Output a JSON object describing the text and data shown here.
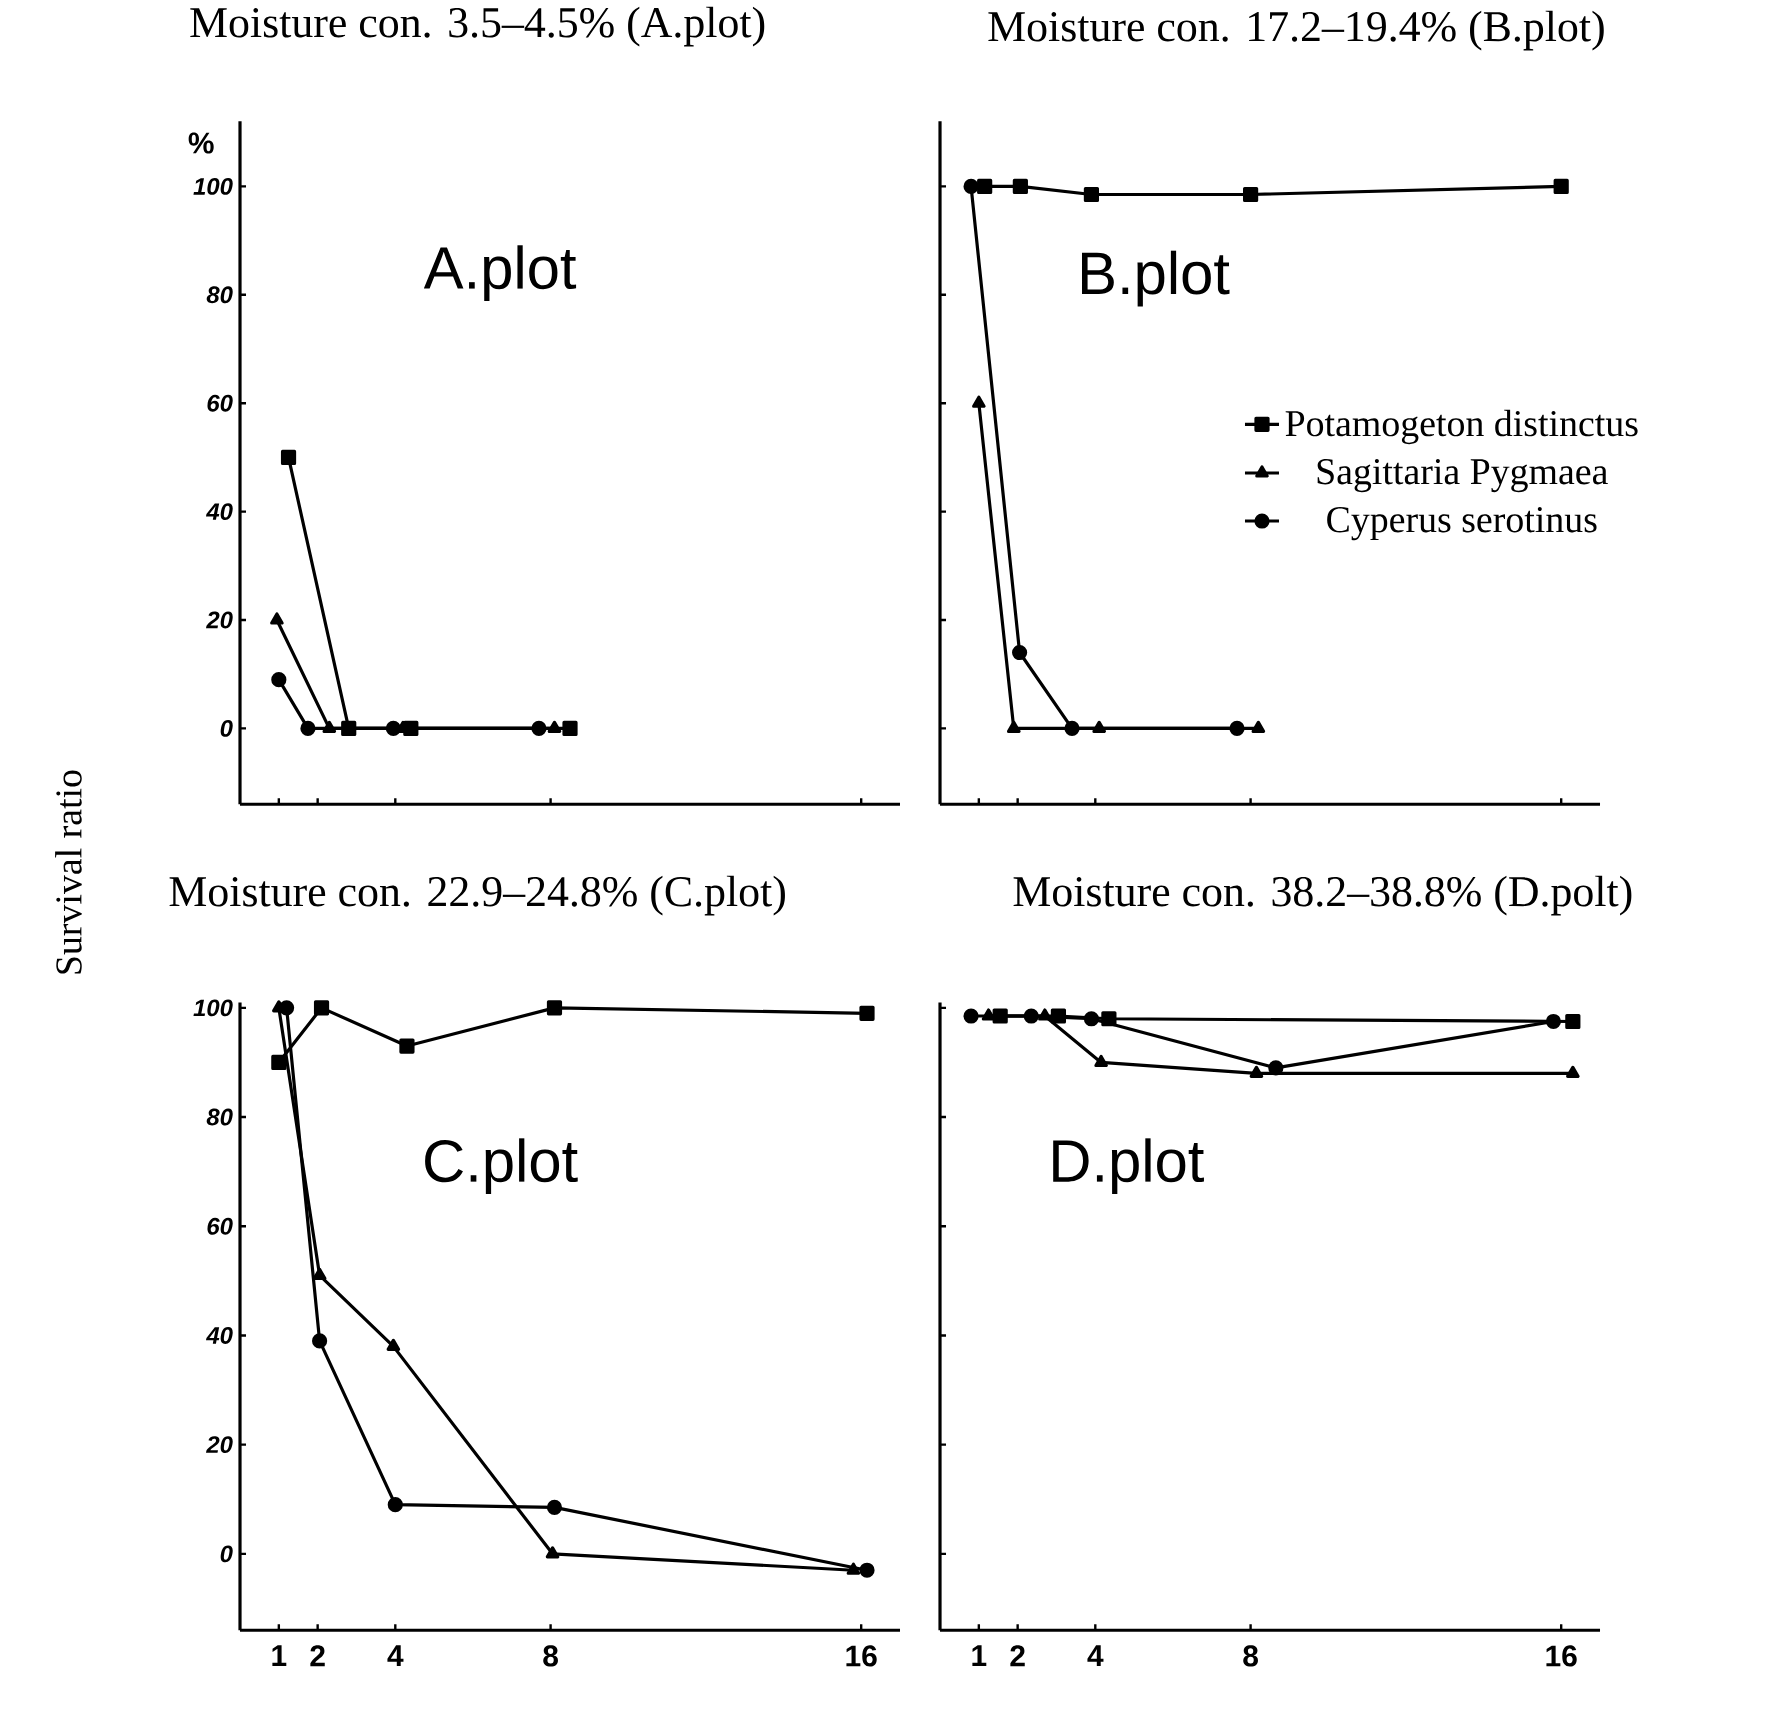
{
  "chart_data": [
    {
      "type": "line",
      "title": "Moisture con. 3.5–4.5% (A.plot)",
      "ylabel": "Survival ratio",
      "annotations": [
        "%",
        "A.plot"
      ],
      "xlim": [
        0,
        17
      ],
      "xticks": [
        1,
        2,
        4,
        8,
        16
      ],
      "ylim": [
        -14,
        112
      ],
      "yticks": [
        0,
        20,
        40,
        60,
        80,
        100
      ],
      "tick_labels": "y",
      "series": [
        {
          "color": "#000000",
          "marker": "square",
          "x": [
            1.25,
            2.8,
            4.4,
            8.5
          ],
          "values": [
            50,
            0,
            0,
            0
          ]
        },
        {
          "color": "#000000",
          "marker": "triangle",
          "x": [
            0.95,
            2.3,
            4.2,
            8.1
          ],
          "values": [
            20,
            0,
            0,
            0
          ]
        },
        {
          "color": "#000000",
          "marker": "circle",
          "x": [
            1.0,
            1.75,
            3.95,
            7.7
          ],
          "values": [
            9,
            0,
            0,
            0
          ]
        }
      ]
    },
    {
      "type": "line",
      "title": "Moisture con. 17.2–19.4% (B.plot)",
      "annotations": [
        "B.plot"
      ],
      "xlim": [
        0,
        17
      ],
      "xticks": [
        1,
        2,
        4,
        8,
        16
      ],
      "ylim": [
        -14,
        112
      ],
      "yticks": [
        0,
        20,
        40,
        60,
        80,
        100
      ],
      "tick_labels": false,
      "legend": "right",
      "series": [
        {
          "name": "Potamogeton distinctus",
          "color": "#000000",
          "marker": "square",
          "x": [
            1.15,
            2.07,
            3.9,
            8.0,
            16.0
          ],
          "values": [
            100,
            100,
            98.5,
            98.5,
            100
          ]
        },
        {
          "name": "Sagittaria Pygmaea",
          "color": "#000000",
          "marker": "triangle",
          "x": [
            1.0,
            1.9,
            4.1,
            8.2
          ],
          "values": [
            60,
            0,
            0,
            0
          ]
        },
        {
          "name": "Cyperus serotinus",
          "color": "#000000",
          "marker": "circle",
          "x": [
            0.8,
            2.05,
            3.4,
            7.65
          ],
          "values": [
            100,
            14,
            0,
            0
          ]
        }
      ]
    },
    {
      "type": "line",
      "title": "Moisture con. 22.9–24.8% (C.plot)",
      "annotations": [
        "C.plot"
      ],
      "xlim": [
        0,
        17
      ],
      "xticks": [
        1,
        2,
        4,
        8,
        16
      ],
      "ylim": [
        -14,
        101
      ],
      "yticks": [
        0,
        20,
        40,
        60,
        80,
        100
      ],
      "series": [
        {
          "color": "#000000",
          "marker": "square",
          "x": [
            1.0,
            2.1,
            4.3,
            8.1,
            16.15
          ],
          "values": [
            90,
            100,
            93,
            100,
            99
          ]
        },
        {
          "color": "#000000",
          "marker": "triangle",
          "x": [
            1.0,
            2.05,
            3.95,
            8.05,
            15.8
          ],
          "values": [
            100,
            51,
            38,
            0,
            -3
          ]
        },
        {
          "color": "#000000",
          "marker": "circle",
          "x": [
            1.2,
            2.05,
            4.0,
            8.1,
            16.15
          ],
          "values": [
            100,
            39,
            9,
            8.5,
            -3
          ]
        }
      ]
    },
    {
      "type": "line",
      "title": "Moisture con. 38.2–38.8% (D.polt)",
      "annotations": [
        "D.plot"
      ],
      "xlim": [
        0,
        17
      ],
      "xticks": [
        1,
        2,
        4,
        8,
        16
      ],
      "ylim": [
        -14,
        101
      ],
      "yticks": [
        0,
        20,
        40,
        60,
        80,
        100
      ],
      "tick_labels": "x",
      "series": [
        {
          "color": "#000000",
          "marker": "square",
          "x": [
            1.55,
            3.05,
            4.35,
            16.3
          ],
          "values": [
            98.5,
            98.5,
            98,
            97.5
          ]
        },
        {
          "color": "#000000",
          "marker": "triangle",
          "x": [
            1.25,
            2.7,
            4.15,
            8.15,
            16.3
          ],
          "values": [
            98.5,
            98.5,
            90,
            88,
            88
          ]
        },
        {
          "color": "#000000",
          "marker": "circle",
          "x": [
            0.8,
            2.35,
            3.9,
            8.65,
            15.8
          ],
          "values": [
            98.5,
            98.5,
            98,
            89,
            97.5
          ]
        }
      ]
    }
  ]
}
